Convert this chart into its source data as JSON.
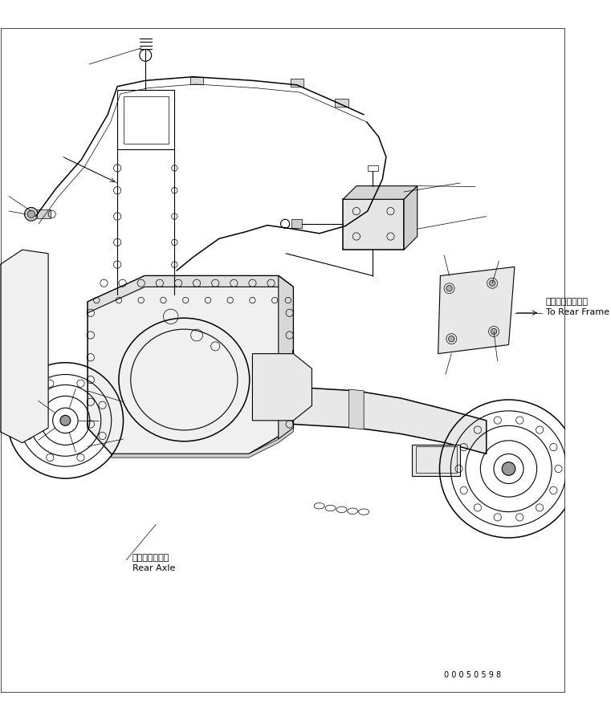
{
  "bg_color": "#ffffff",
  "line_color": "#000000",
  "fig_width": 7.61,
  "fig_height": 8.97,
  "dpi": 100,
  "label_rear_axle_jp": "リヤーアクスル",
  "label_rear_axle_en": "Rear Axle",
  "label_rear_frame_jp": "リヤーフレームへ",
  "label_rear_frame_en": "To Rear Frame",
  "part_number": "0 0 0 5 0 5 9 8",
  "font_size_label": 8,
  "font_size_part": 7
}
